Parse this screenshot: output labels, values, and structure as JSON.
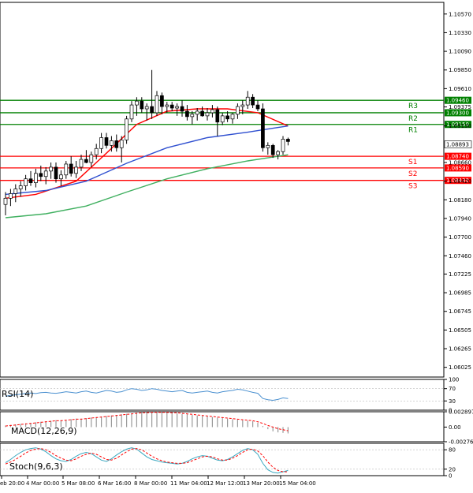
{
  "colors": {
    "up": "#1e7a1e",
    "down": "#1e7a1e",
    "resistance": "#008000",
    "support": "#ff0000",
    "ma_fast": "#ff0000",
    "ma_mid": "#3050d0",
    "ma_slow": "#40b060",
    "rsi": "#4a90d0",
    "macd_hist": "#999999",
    "macd_signal": "#ff0000",
    "stoch_k": "#3aa8c0",
    "stoch_d": "#ff0000"
  },
  "chart_data": [
    {
      "type": "candlestick",
      "x_labels": [
        "eb 20:00",
        "4 Mar 00:00",
        "5 Mar 08:00",
        "6 Mar 16:00",
        "8 Mar 00:00",
        "11 Mar 04:00",
        "12 Mar 12:00",
        "13 Mar 20:00",
        "15 Mar 04:00"
      ],
      "y_ticks": [
        "1.10570",
        "1.10330",
        "1.10090",
        "1.09850",
        "1.09610",
        "1.09375",
        "1.09130",
        "1.08660",
        "1.08420",
        "1.08180",
        "1.07940",
        "1.07700",
        "1.07460",
        "1.07225",
        "1.06985",
        "1.06745",
        "1.06505",
        "1.06265",
        "1.06025"
      ],
      "ylim": [
        1.059,
        1.1072
      ],
      "current_price": "1.08893",
      "levels": [
        {
          "name": "R3",
          "value": 1.0946,
          "price_label": "1.09460",
          "kind": "resistance"
        },
        {
          "name": "R2",
          "value": 1.093,
          "price_label": "1.09300",
          "kind": "resistance"
        },
        {
          "name": "R1",
          "value": 1.0915,
          "price_label": "1.09150",
          "kind": "resistance"
        },
        {
          "name": "S1",
          "value": 1.0874,
          "price_label": "1.08740",
          "kind": "support"
        },
        {
          "name": "S2",
          "value": 1.0859,
          "price_label": "1.08590",
          "kind": "support"
        },
        {
          "name": "S3",
          "value": 1.0843,
          "price_label": "1.08430",
          "kind": "support"
        }
      ],
      "candles": [
        {
          "o": 1.0812,
          "h": 1.0828,
          "l": 1.0798,
          "c": 1.082
        },
        {
          "o": 1.082,
          "h": 1.0832,
          "l": 1.081,
          "c": 1.0826
        },
        {
          "o": 1.0826,
          "h": 1.0838,
          "l": 1.0815,
          "c": 1.0832
        },
        {
          "o": 1.0832,
          "h": 1.0842,
          "l": 1.0822,
          "c": 1.0836
        },
        {
          "o": 1.0836,
          "h": 1.085,
          "l": 1.083,
          "c": 1.0845
        },
        {
          "o": 1.0845,
          "h": 1.0855,
          "l": 1.0836,
          "c": 1.084
        },
        {
          "o": 1.084,
          "h": 1.0858,
          "l": 1.0834,
          "c": 1.0852
        },
        {
          "o": 1.0852,
          "h": 1.0862,
          "l": 1.0842,
          "c": 1.0848
        },
        {
          "o": 1.0848,
          "h": 1.086,
          "l": 1.0838,
          "c": 1.0855
        },
        {
          "o": 1.0855,
          "h": 1.0866,
          "l": 1.0845,
          "c": 1.086
        },
        {
          "o": 1.086,
          "h": 1.0866,
          "l": 1.084,
          "c": 1.0845
        },
        {
          "o": 1.0845,
          "h": 1.0856,
          "l": 1.0836,
          "c": 1.085
        },
        {
          "o": 1.085,
          "h": 1.0868,
          "l": 1.0845,
          "c": 1.0864
        },
        {
          "o": 1.0864,
          "h": 1.0874,
          "l": 1.0848,
          "c": 1.0852
        },
        {
          "o": 1.0852,
          "h": 1.0868,
          "l": 1.0846,
          "c": 1.086
        },
        {
          "o": 1.086,
          "h": 1.0876,
          "l": 1.0855,
          "c": 1.087
        },
        {
          "o": 1.087,
          "h": 1.0882,
          "l": 1.0865,
          "c": 1.0866
        },
        {
          "o": 1.0866,
          "h": 1.088,
          "l": 1.086,
          "c": 1.0876
        },
        {
          "o": 1.0876,
          "h": 1.089,
          "l": 1.087,
          "c": 1.0884
        },
        {
          "o": 1.0884,
          "h": 1.0904,
          "l": 1.0878,
          "c": 1.0898
        },
        {
          "o": 1.0898,
          "h": 1.0904,
          "l": 1.0884,
          "c": 1.0888
        },
        {
          "o": 1.0888,
          "h": 1.09,
          "l": 1.088,
          "c": 1.0894
        },
        {
          "o": 1.0894,
          "h": 1.0902,
          "l": 1.088,
          "c": 1.0885
        },
        {
          "o": 1.0885,
          "h": 1.09,
          "l": 1.0866,
          "c": 1.0895
        },
        {
          "o": 1.0895,
          "h": 1.0926,
          "l": 1.089,
          "c": 1.0922
        },
        {
          "o": 1.0922,
          "h": 1.0945,
          "l": 1.0918,
          "c": 1.094
        },
        {
          "o": 1.094,
          "h": 1.095,
          "l": 1.0926,
          "c": 1.0945
        },
        {
          "o": 1.0945,
          "h": 1.095,
          "l": 1.093,
          "c": 1.0935
        },
        {
          "o": 1.0935,
          "h": 1.0942,
          "l": 1.092,
          "c": 1.0938
        },
        {
          "o": 1.0938,
          "h": 1.0985,
          "l": 1.0922,
          "c": 1.093
        },
        {
          "o": 1.093,
          "h": 1.0958,
          "l": 1.0926,
          "c": 1.0952
        },
        {
          "o": 1.0952,
          "h": 1.0956,
          "l": 1.0928,
          "c": 1.0938
        },
        {
          "o": 1.0938,
          "h": 1.0944,
          "l": 1.093,
          "c": 1.094
        },
        {
          "o": 1.094,
          "h": 1.0944,
          "l": 1.0932,
          "c": 1.0936
        },
        {
          "o": 1.0936,
          "h": 1.0942,
          "l": 1.0926,
          "c": 1.0938
        },
        {
          "o": 1.0938,
          "h": 1.0946,
          "l": 1.0925,
          "c": 1.0932
        },
        {
          "o": 1.0932,
          "h": 1.094,
          "l": 1.092,
          "c": 1.0925
        },
        {
          "o": 1.0925,
          "h": 1.0932,
          "l": 1.0915,
          "c": 1.0928
        },
        {
          "o": 1.0928,
          "h": 1.0936,
          "l": 1.092,
          "c": 1.0932
        },
        {
          "o": 1.0932,
          "h": 1.0938,
          "l": 1.0925,
          "c": 1.0926
        },
        {
          "o": 1.0926,
          "h": 1.0936,
          "l": 1.092,
          "c": 1.093
        },
        {
          "o": 1.093,
          "h": 1.094,
          "l": 1.0924,
          "c": 1.0934
        },
        {
          "o": 1.0934,
          "h": 1.0938,
          "l": 1.09,
          "c": 1.0918
        },
        {
          "o": 1.0918,
          "h": 1.093,
          "l": 1.0914,
          "c": 1.0926
        },
        {
          "o": 1.0926,
          "h": 1.0932,
          "l": 1.0918,
          "c": 1.0922
        },
        {
          "o": 1.0922,
          "h": 1.093,
          "l": 1.0916,
          "c": 1.0928
        },
        {
          "o": 1.0928,
          "h": 1.0942,
          "l": 1.0922,
          "c": 1.0938
        },
        {
          "o": 1.0938,
          "h": 1.0946,
          "l": 1.0928,
          "c": 1.094
        },
        {
          "o": 1.094,
          "h": 1.0958,
          "l": 1.0935,
          "c": 1.095
        },
        {
          "o": 1.095,
          "h": 1.0954,
          "l": 1.0936,
          "c": 1.094
        },
        {
          "o": 1.094,
          "h": 1.0946,
          "l": 1.0932,
          "c": 1.0935
        },
        {
          "o": 1.0935,
          "h": 1.0942,
          "l": 1.088,
          "c": 1.0885
        },
        {
          "o": 1.0885,
          "h": 1.0892,
          "l": 1.0876,
          "c": 1.0888
        },
        {
          "o": 1.0888,
          "h": 1.089,
          "l": 1.0872,
          "c": 1.0876
        },
        {
          "o": 1.0876,
          "h": 1.0882,
          "l": 1.087,
          "c": 1.088
        },
        {
          "o": 1.088,
          "h": 1.09,
          "l": 1.0876,
          "c": 1.0896
        },
        {
          "o": 1.0896,
          "h": 1.0898,
          "l": 1.0888,
          "c": 1.0893
        }
      ],
      "moving_averages": [
        {
          "color_key": "ma_fast",
          "points": [
            [
              0,
              1.082
            ],
            [
              6,
              1.0825
            ],
            [
              14,
              1.0842
            ],
            [
              20,
              1.0878
            ],
            [
              26,
              1.0915
            ],
            [
              32,
              1.0932
            ],
            [
              38,
              1.0935
            ],
            [
              44,
              1.0935
            ],
            [
              50,
              1.093
            ],
            [
              56,
              1.0913
            ]
          ]
        },
        {
          "color_key": "ma_mid",
          "points": [
            [
              0,
              1.0825
            ],
            [
              8,
              1.083
            ],
            [
              16,
              1.0842
            ],
            [
              24,
              1.0865
            ],
            [
              32,
              1.0885
            ],
            [
              40,
              1.0898
            ],
            [
              48,
              1.0905
            ],
            [
              53,
              1.091
            ],
            [
              56,
              1.0913
            ]
          ]
        },
        {
          "color_key": "ma_slow",
          "points": [
            [
              0,
              1.0795
            ],
            [
              8,
              1.08
            ],
            [
              16,
              1.081
            ],
            [
              24,
              1.0828
            ],
            [
              32,
              1.0845
            ],
            [
              40,
              1.0858
            ],
            [
              48,
              1.0868
            ],
            [
              52,
              1.0872
            ],
            [
              56,
              1.0876
            ]
          ]
        }
      ]
    },
    {
      "type": "line",
      "name": "RSI(14)",
      "y_ticks": [
        "100",
        "70",
        "30",
        "0"
      ],
      "ylim": [
        0,
        100
      ],
      "values": [
        45,
        48,
        50,
        52,
        55,
        56,
        54,
        57,
        58,
        56,
        55,
        57,
        60,
        58,
        56,
        60,
        62,
        58,
        56,
        60,
        64,
        62,
        58,
        60,
        66,
        70,
        68,
        64,
        66,
        70,
        68,
        64,
        62,
        60,
        62,
        64,
        58,
        56,
        58,
        60,
        62,
        58,
        56,
        60,
        62,
        64,
        68,
        66,
        62,
        58,
        55,
        38,
        34,
        32,
        35,
        40,
        38
      ]
    },
    {
      "type": "bar",
      "name": "MACD(12,26,9)",
      "y_ticks": [
        "0.002897",
        "0.00",
        "-0.002763"
      ],
      "ylim": [
        -0.002763,
        0.002897
      ],
      "values": [
        0.0003,
        0.0004,
        0.0005,
        0.0006,
        0.0007,
        0.0008,
        0.0009,
        0.001,
        0.0011,
        0.0012,
        0.0013,
        0.0013,
        0.0014,
        0.0015,
        0.0016,
        0.0016,
        0.0017,
        0.0018,
        0.0019,
        0.002,
        0.0021,
        0.0022,
        0.0023,
        0.0024,
        0.0025,
        0.0026,
        0.0027,
        0.0028,
        0.0028,
        0.0029,
        0.0029,
        0.0028,
        0.0028,
        0.0027,
        0.0026,
        0.0025,
        0.0024,
        0.0023,
        0.0022,
        0.0021,
        0.002,
        0.0019,
        0.0018,
        0.0017,
        0.0016,
        0.0015,
        0.0014,
        0.0013,
        0.0012,
        0.0011,
        0.0008,
        0.0002,
        -0.0004,
        -0.0008,
        -0.001,
        -0.0011,
        -0.0012
      ],
      "signal": [
        0.0002,
        0.0003,
        0.0004,
        0.0005,
        0.0006,
        0.0007,
        0.0008,
        0.0009,
        0.001,
        0.0011,
        0.0012,
        0.0012,
        0.0013,
        0.0014,
        0.0015,
        0.0015,
        0.0016,
        0.0017,
        0.0018,
        0.0019,
        0.002,
        0.0021,
        0.0022,
        0.0023,
        0.0024,
        0.0025,
        0.0026,
        0.0027,
        0.0027,
        0.0028,
        0.0028,
        0.0028,
        0.0028,
        0.0027,
        0.0027,
        0.0026,
        0.0025,
        0.0024,
        0.0023,
        0.0022,
        0.0021,
        0.002,
        0.0019,
        0.0018,
        0.0017,
        0.0016,
        0.0015,
        0.0014,
        0.0013,
        0.0012,
        0.001,
        0.0007,
        0.0003,
        0.0,
        -0.0003,
        -0.0005,
        -0.0007
      ]
    },
    {
      "type": "line",
      "name": "Stoch(9,6,3)",
      "y_ticks": [
        "80",
        "20",
        "0"
      ],
      "ylim": [
        0,
        100
      ],
      "k": [
        40,
        50,
        62,
        72,
        80,
        84,
        86,
        82,
        74,
        62,
        52,
        46,
        44,
        50,
        60,
        68,
        72,
        68,
        58,
        48,
        44,
        52,
        64,
        74,
        82,
        86,
        82,
        70,
        58,
        50,
        46,
        42,
        40,
        38,
        36,
        38,
        44,
        52,
        58,
        62,
        60,
        54,
        48,
        46,
        50,
        58,
        68,
        78,
        84,
        80,
        66,
        38,
        18,
        10,
        8,
        12,
        16
      ],
      "d": [
        36,
        42,
        50,
        60,
        70,
        78,
        82,
        84,
        80,
        72,
        62,
        54,
        48,
        46,
        52,
        60,
        66,
        70,
        66,
        58,
        50,
        48,
        54,
        64,
        74,
        82,
        84,
        80,
        70,
        60,
        52,
        46,
        42,
        40,
        38,
        38,
        40,
        46,
        52,
        58,
        60,
        58,
        52,
        48,
        48,
        54,
        62,
        72,
        80,
        82,
        76,
        62,
        42,
        26,
        16,
        12,
        12
      ]
    }
  ]
}
